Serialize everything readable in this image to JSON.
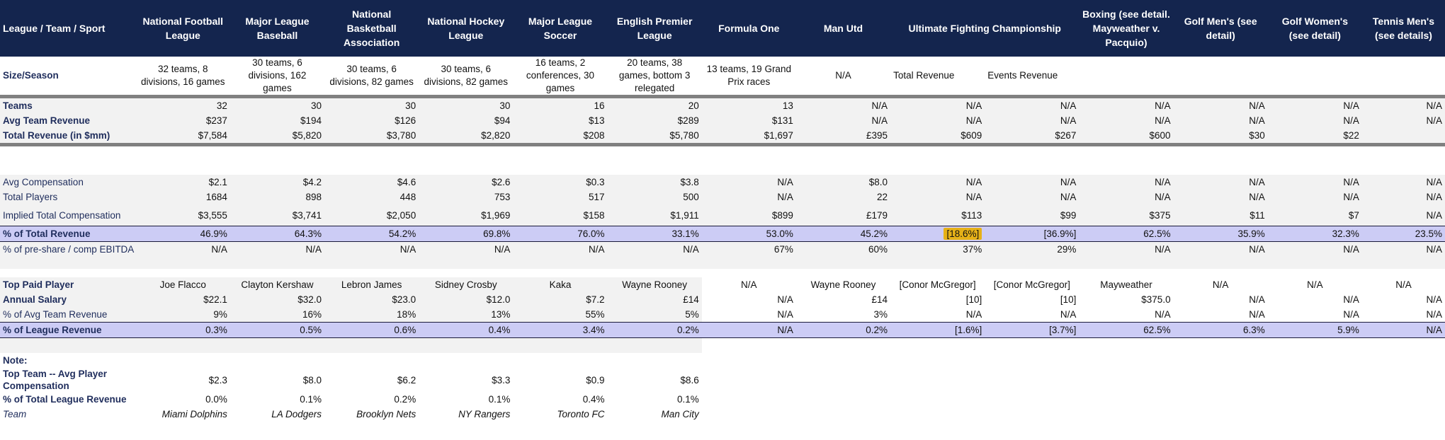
{
  "header": [
    "League / Team / Sport",
    "National Football League",
    "Major League Baseball",
    "National Basketball Association",
    "National Hockey League",
    "Major League Soccer",
    "English Premier League",
    "Formula One",
    "Man Utd",
    "Ultimate Fighting Championship",
    "",
    "Boxing (see detail. Mayweather v. Pacquio)",
    "Golf Men's (see detail)",
    "Golf Women's (see detail)",
    "Tennis Men's (see details)"
  ],
  "size_season": [
    "Size/Season",
    "32 teams, 8 divisions, 16 games",
    "30 teams, 6 divisions, 162 games",
    "30 teams, 6 divisions, 82 games",
    "30 teams, 6 divisions, 82 games",
    "16 teams, 2 conferences, 30 games",
    "20 teams, 38 games, bottom 3 relegated",
    "13 teams, 19 Grand Prix races",
    "N/A",
    "Total Revenue",
    "Events Revenue",
    "",
    "",
    "",
    ""
  ],
  "rows1": [
    [
      "Teams",
      "32",
      "30",
      "30",
      "30",
      "16",
      "20",
      "13",
      "N/A",
      "N/A",
      "N/A",
      "N/A",
      "N/A",
      "N/A",
      "N/A"
    ],
    [
      "Avg Team Revenue",
      "$237",
      "$194",
      "$126",
      "$94",
      "$13",
      "$289",
      "$131",
      "N/A",
      "N/A",
      "N/A",
      "N/A",
      "N/A",
      "N/A",
      "N/A"
    ],
    [
      "Total Revenue (in $mm)",
      "$7,584",
      "$5,820",
      "$3,780",
      "$2,820",
      "$208",
      "$5,780",
      "$1,697",
      "£395",
      "$609",
      "$267",
      "$600",
      "$30",
      "$22",
      ""
    ]
  ],
  "rows2": [
    [
      "Avg Compensation",
      "$2.1",
      "$4.2",
      "$4.6",
      "$2.6",
      "$0.3",
      "$3.8",
      "N/A",
      "$8.0",
      "N/A",
      "N/A",
      "N/A",
      "N/A",
      "N/A",
      "N/A"
    ],
    [
      "Total Players",
      "1684",
      "898",
      "448",
      "753",
      "517",
      "500",
      "N/A",
      "22",
      "N/A",
      "N/A",
      "N/A",
      "N/A",
      "N/A",
      "N/A"
    ],
    [
      "Implied Total Compensation",
      "$3,555",
      "$3,741",
      "$2,050",
      "$1,969",
      "$158",
      "$1,911",
      "$899",
      "£179",
      "$113",
      "$99",
      "$375",
      "$11",
      "$7",
      "N/A"
    ]
  ],
  "pct_total_rev": [
    "% of Total Revenue",
    "46.9%",
    "64.3%",
    "54.2%",
    "69.8%",
    "76.0%",
    "33.1%",
    "53.0%",
    "45.2%",
    "[18.6%]",
    "[36.9%]",
    "62.5%",
    "35.9%",
    "32.3%",
    "23.5%"
  ],
  "pct_ebitda": [
    "% of pre-share / comp EBITDA",
    "N/A",
    "N/A",
    "N/A",
    "N/A",
    "N/A",
    "N/A",
    "67%",
    "60%",
    "37%",
    "29%",
    "N/A",
    "N/A",
    "N/A",
    "N/A"
  ],
  "top_player": [
    "Top Paid Player",
    "Joe Flacco",
    "Clayton Kershaw",
    "Lebron James",
    "Sidney Crosby",
    "Kaka",
    "Wayne Rooney",
    "N/A",
    "Wayne Rooney",
    "[Conor McGregor]",
    "[Conor McGregor]",
    "Mayweather",
    "N/A",
    "N/A",
    "N/A"
  ],
  "annual_salary": [
    "Annual Salary",
    "$22.1",
    "$32.0",
    "$23.0",
    "$12.0",
    "$7.2",
    "£14",
    "N/A",
    "£14",
    "[10]",
    "[10]",
    "$375.0",
    "N/A",
    "N/A",
    "N/A"
  ],
  "pct_avg_team": [
    "% of Avg Team Revenue",
    "9%",
    "16%",
    "18%",
    "13%",
    "55%",
    "5%",
    "N/A",
    "3%",
    "N/A",
    "N/A",
    "N/A",
    "N/A",
    "N/A",
    "N/A"
  ],
  "pct_league": [
    "% of League Revenue",
    "0.3%",
    "0.5%",
    "0.6%",
    "0.4%",
    "3.4%",
    "0.2%",
    "N/A",
    "0.2%",
    "[1.6%]",
    "[3.7%]",
    "62.5%",
    "6.3%",
    "5.9%",
    "N/A"
  ],
  "note": {
    "label": "Note:",
    "top_team_label": "Top Team -- Avg Player Compensation",
    "top_team_values": [
      "$2.3",
      "$8.0",
      "$6.2",
      "$3.3",
      "$0.9",
      "$8.6"
    ],
    "pct_label": "% of Total League Revenue",
    "pct_values": [
      "0.0%",
      "0.1%",
      "0.2%",
      "0.1%",
      "0.4%",
      "0.1%"
    ],
    "team_label": "Team",
    "teams": [
      "Miami Dolphins",
      "LA Dodgers",
      "Brooklyn Nets",
      "NY Rangers",
      "Toronto FC",
      "Man City"
    ]
  },
  "colors": {
    "header_bg": "#14254e",
    "highlight_bg": "#ccccf5",
    "badge": "#e6b118",
    "label_text": "#1f2d5c"
  }
}
